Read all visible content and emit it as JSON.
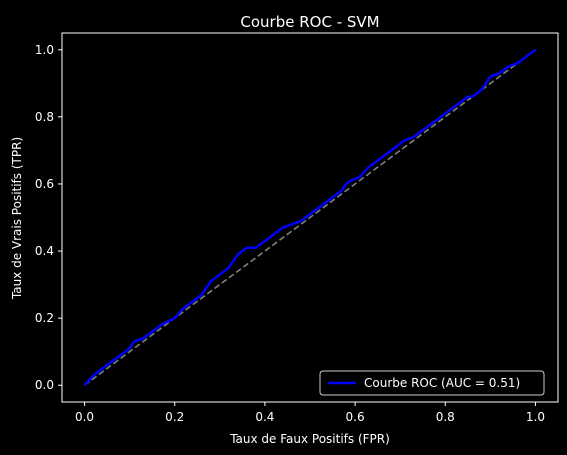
{
  "chart_data": {
    "type": "line",
    "title": "Courbe ROC - SVM",
    "xlabel": "Taux de Faux Positifs (FPR)",
    "ylabel": "Taux de Vrais Positifs (TPR)",
    "xlim": [
      -0.05,
      1.05
    ],
    "ylim": [
      -0.05,
      1.05
    ],
    "grid": false,
    "legend_position": "lower-right",
    "xticks": [
      0.0,
      0.2,
      0.4,
      0.6,
      0.8,
      1.0
    ],
    "xtick_labels": [
      "0.0",
      "0.2",
      "0.4",
      "0.6",
      "0.8",
      "1.0"
    ],
    "yticks": [
      0.0,
      0.2,
      0.4,
      0.6,
      0.8,
      1.0
    ],
    "ytick_labels": [
      "0.0",
      "0.2",
      "0.4",
      "0.6",
      "0.8",
      "1.0"
    ],
    "series": [
      {
        "name": "Courbe ROC (AUC = 0.51)",
        "color": "#0000ff",
        "style": "solid",
        "x": [
          0.0,
          0.02,
          0.05,
          0.07,
          0.09,
          0.1,
          0.11,
          0.13,
          0.15,
          0.17,
          0.2,
          0.22,
          0.24,
          0.26,
          0.27,
          0.28,
          0.29,
          0.3,
          0.31,
          0.32,
          0.33,
          0.34,
          0.35,
          0.36,
          0.38,
          0.39,
          0.4,
          0.41,
          0.42,
          0.44,
          0.46,
          0.48,
          0.49,
          0.5,
          0.52,
          0.53,
          0.55,
          0.57,
          0.58,
          0.59,
          0.61,
          0.63,
          0.65,
          0.67,
          0.69,
          0.71,
          0.73,
          0.75,
          0.77,
          0.79,
          0.8,
          0.82,
          0.84,
          0.85,
          0.86,
          0.87,
          0.88,
          0.89,
          0.9,
          0.92,
          0.94,
          0.96,
          0.98,
          1.0
        ],
        "y": [
          0.0,
          0.03,
          0.06,
          0.08,
          0.1,
          0.11,
          0.13,
          0.14,
          0.16,
          0.18,
          0.2,
          0.23,
          0.25,
          0.27,
          0.29,
          0.31,
          0.32,
          0.33,
          0.34,
          0.35,
          0.37,
          0.39,
          0.4,
          0.41,
          0.41,
          0.42,
          0.43,
          0.44,
          0.45,
          0.47,
          0.48,
          0.49,
          0.5,
          0.51,
          0.53,
          0.54,
          0.56,
          0.58,
          0.6,
          0.61,
          0.62,
          0.65,
          0.67,
          0.69,
          0.71,
          0.73,
          0.74,
          0.76,
          0.78,
          0.8,
          0.81,
          0.83,
          0.85,
          0.86,
          0.86,
          0.87,
          0.88,
          0.9,
          0.92,
          0.93,
          0.95,
          0.96,
          0.98,
          1.0
        ]
      },
      {
        "color": "#808080",
        "style": "dashed",
        "x": [
          0.0,
          1.0
        ],
        "y": [
          0.0,
          1.0
        ]
      }
    ]
  }
}
